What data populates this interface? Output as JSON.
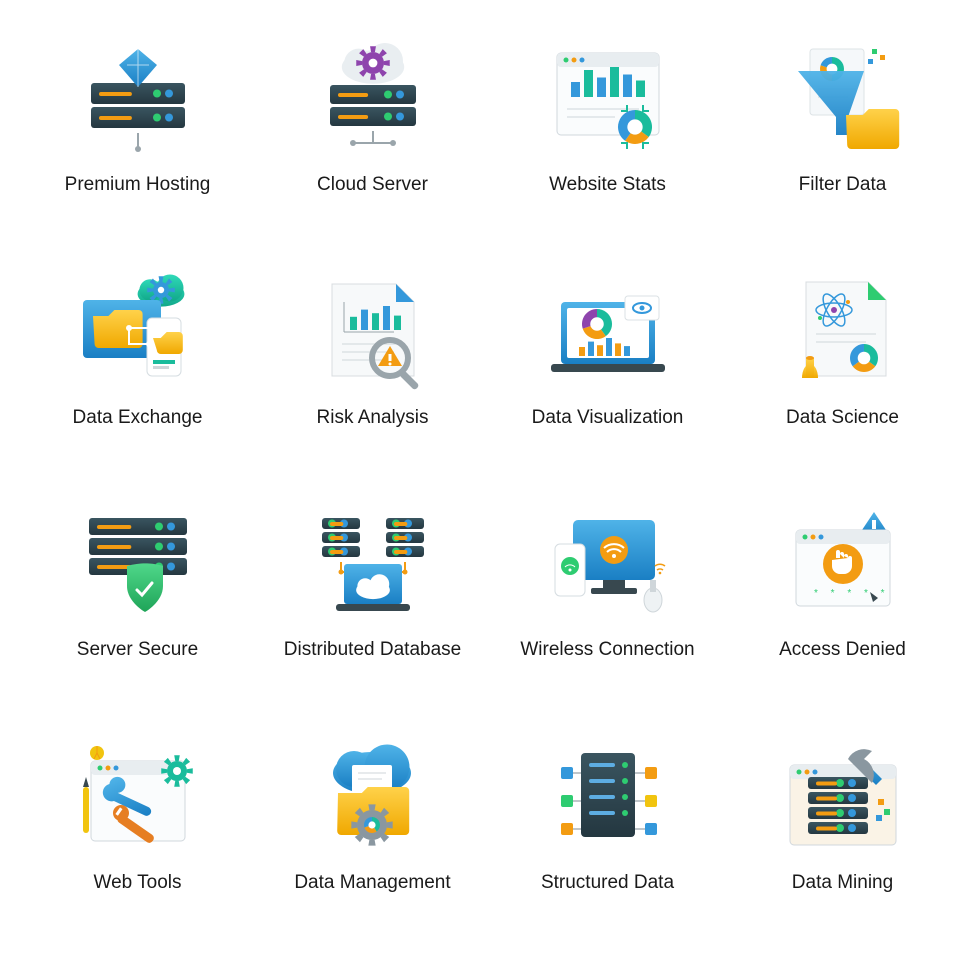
{
  "grid": {
    "columns": 4,
    "rows": 4,
    "background_color": "#ffffff",
    "label_fontsize": 19,
    "label_color": "#1a1a1a"
  },
  "palette": {
    "dark_teal": "#2d4a52",
    "teal": "#1abc9c",
    "green": "#2ecc71",
    "blue": "#3498db",
    "blue_light": "#5dade2",
    "cyan": "#00bcd4",
    "purple": "#8e44ad",
    "yellow": "#f1c40f",
    "orange": "#f39c12",
    "orange_dark": "#e67e22",
    "gray": "#95a5a6",
    "gray_light": "#ecf0f1",
    "white": "#ffffff",
    "folder_yellow": "#f5b800"
  },
  "icons": [
    {
      "id": "premium-hosting",
      "label": "Premium Hosting",
      "type": "server-diamond"
    },
    {
      "id": "cloud-server",
      "label": "Cloud Server",
      "type": "cloud-server"
    },
    {
      "id": "website-stats",
      "label": "Website Stats",
      "type": "browser-chart"
    },
    {
      "id": "filter-data",
      "label": "Filter Data",
      "type": "funnel-folder"
    },
    {
      "id": "data-exchange",
      "label": "Data Exchange",
      "type": "folder-sync"
    },
    {
      "id": "risk-analysis",
      "label": "Risk Analysis",
      "type": "doc-warning"
    },
    {
      "id": "data-visualization",
      "label": "Data Visualization",
      "type": "laptop-pie"
    },
    {
      "id": "data-science",
      "label": "Data Science",
      "type": "doc-atom"
    },
    {
      "id": "server-secure",
      "label": "Server Secure",
      "type": "server-shield"
    },
    {
      "id": "distributed-db",
      "label": "Distributed Database",
      "type": "servers-laptop"
    },
    {
      "id": "wireless",
      "label": "Wireless Connection",
      "type": "monitor-wifi"
    },
    {
      "id": "access-denied",
      "label": "Access Denied",
      "type": "browser-hand"
    },
    {
      "id": "web-tools",
      "label": "Web Tools",
      "type": "browser-wrench"
    },
    {
      "id": "data-management",
      "label": "Data Management",
      "type": "cloud-folder-gear"
    },
    {
      "id": "structured-data",
      "label": "Structured Data",
      "type": "server-nodes"
    },
    {
      "id": "data-mining",
      "label": "Data Mining",
      "type": "server-pick"
    }
  ]
}
